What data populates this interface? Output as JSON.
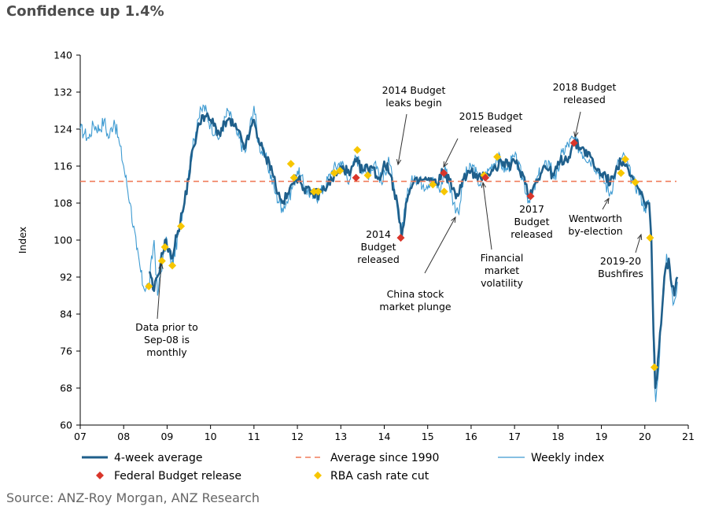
{
  "title": "Confidence up 1.4%",
  "source": "Source: ANZ-Roy Morgan, ANZ Research",
  "colors": {
    "avg4w": "#1f5f8b",
    "weekly": "#3d9ad1",
    "average": "#f07d5c",
    "budget": "#d9352a",
    "rba": "#f7c600"
  },
  "chart_data": {
    "type": "line",
    "title": "Confidence up 1.4%",
    "xlabel": "",
    "ylabel": "Index",
    "xlim": [
      2007,
      2021
    ],
    "ylim": [
      60,
      140
    ],
    "x_ticks": [
      "07",
      "08",
      "09",
      "10",
      "11",
      "12",
      "13",
      "14",
      "15",
      "16",
      "17",
      "18",
      "19",
      "20",
      "21"
    ],
    "y_ticks": [
      60,
      68,
      76,
      84,
      92,
      100,
      108,
      116,
      124,
      132,
      140
    ],
    "average_since_1990": 112.7,
    "legend": [
      "4-week average",
      "Average since 1990",
      "Weekly index",
      "Federal Budget release",
      "RBA cash rate cut"
    ],
    "series_4week_anchors": [
      [
        2008.58,
        93
      ],
      [
        2008.7,
        89
      ],
      [
        2008.85,
        95
      ],
      [
        2008.95,
        100
      ],
      [
        2009.1,
        96
      ],
      [
        2009.25,
        102
      ],
      [
        2009.4,
        108
      ],
      [
        2009.6,
        120
      ],
      [
        2009.8,
        127
      ],
      [
        2010.0,
        126
      ],
      [
        2010.2,
        123
      ],
      [
        2010.4,
        126
      ],
      [
        2010.6,
        124
      ],
      [
        2010.8,
        120
      ],
      [
        2011.0,
        126
      ],
      [
        2011.1,
        122
      ],
      [
        2011.25,
        118
      ],
      [
        2011.4,
        116
      ],
      [
        2011.55,
        110
      ],
      [
        2011.65,
        108
      ],
      [
        2011.8,
        110
      ],
      [
        2011.95,
        114
      ],
      [
        2012.1,
        112
      ],
      [
        2012.3,
        110
      ],
      [
        2012.5,
        110
      ],
      [
        2012.7,
        112
      ],
      [
        2012.9,
        114
      ],
      [
        2013.05,
        116
      ],
      [
        2013.2,
        114
      ],
      [
        2013.35,
        117
      ],
      [
        2013.5,
        115
      ],
      [
        2013.7,
        116
      ],
      [
        2013.9,
        113
      ],
      [
        2014.0,
        117
      ],
      [
        2014.15,
        114
      ],
      [
        2014.3,
        108
      ],
      [
        2014.4,
        100.5
      ],
      [
        2014.5,
        108
      ],
      [
        2014.65,
        112
      ],
      [
        2014.85,
        113
      ],
      [
        2015.0,
        113
      ],
      [
        2015.2,
        112
      ],
      [
        2015.35,
        115
      ],
      [
        2015.5,
        113
      ],
      [
        2015.65,
        109
      ],
      [
        2015.8,
        113
      ],
      [
        2016.0,
        115
      ],
      [
        2016.15,
        113
      ],
      [
        2016.3,
        114
      ],
      [
        2016.5,
        115
      ],
      [
        2016.7,
        117
      ],
      [
        2016.85,
        116
      ],
      [
        2017.0,
        117
      ],
      [
        2017.2,
        114
      ],
      [
        2017.35,
        109.5
      ],
      [
        2017.5,
        113
      ],
      [
        2017.7,
        116
      ],
      [
        2017.9,
        114
      ],
      [
        2018.05,
        117
      ],
      [
        2018.25,
        118
      ],
      [
        2018.35,
        121
      ],
      [
        2018.55,
        120
      ],
      [
        2018.75,
        118
      ],
      [
        2018.9,
        115
      ],
      [
        2019.1,
        114
      ],
      [
        2019.2,
        112
      ],
      [
        2019.35,
        116
      ],
      [
        2019.5,
        117
      ],
      [
        2019.65,
        114
      ],
      [
        2019.8,
        112
      ],
      [
        2019.9,
        110
      ],
      [
        2020.0,
        108
      ],
      [
        2020.1,
        108
      ],
      [
        2020.15,
        100
      ],
      [
        2020.2,
        80
      ],
      [
        2020.24,
        68
      ],
      [
        2020.28,
        70
      ],
      [
        2020.35,
        80
      ],
      [
        2020.45,
        92
      ],
      [
        2020.55,
        96
      ],
      [
        2020.62,
        90
      ],
      [
        2020.68,
        88
      ],
      [
        2020.75,
        92
      ]
    ],
    "series_weekly_anchors": [
      [
        2007.0,
        124
      ],
      [
        2007.1,
        123
      ],
      [
        2007.2,
        122
      ],
      [
        2007.3,
        125
      ],
      [
        2007.45,
        124
      ],
      [
        2007.55,
        126
      ],
      [
        2007.65,
        122
      ],
      [
        2007.78,
        126
      ],
      [
        2007.9,
        121
      ],
      [
        2008.0,
        116
      ],
      [
        2008.15,
        108
      ],
      [
        2008.3,
        98
      ],
      [
        2008.45,
        90
      ],
      [
        2008.58,
        90
      ],
      [
        2008.7,
        100
      ],
      [
        2008.78,
        88
      ],
      [
        2008.9,
        96
      ],
      [
        2009.0,
        100
      ],
      [
        2009.1,
        94
      ],
      [
        2009.3,
        103
      ],
      [
        2009.5,
        115
      ],
      [
        2009.7,
        126
      ],
      [
        2009.85,
        129
      ],
      [
        2010.0,
        125
      ],
      [
        2010.2,
        122
      ],
      [
        2010.4,
        128
      ],
      [
        2010.6,
        123
      ],
      [
        2010.8,
        119
      ],
      [
        2011.0,
        129
      ],
      [
        2011.1,
        121
      ],
      [
        2011.3,
        117
      ],
      [
        2011.5,
        110
      ],
      [
        2011.65,
        107
      ],
      [
        2011.8,
        109
      ],
      [
        2012.0,
        115
      ],
      [
        2012.2,
        111
      ],
      [
        2012.4,
        109
      ],
      [
        2012.6,
        111
      ],
      [
        2012.8,
        115
      ],
      [
        2013.0,
        117
      ],
      [
        2013.2,
        113
      ],
      [
        2013.35,
        118
      ],
      [
        2013.6,
        114
      ],
      [
        2013.8,
        117
      ],
      [
        2013.95,
        112
      ],
      [
        2014.1,
        118
      ],
      [
        2014.25,
        109
      ],
      [
        2014.38,
        101
      ],
      [
        2014.5,
        109
      ],
      [
        2014.7,
        114
      ],
      [
        2014.9,
        112
      ],
      [
        2015.1,
        113
      ],
      [
        2015.3,
        111
      ],
      [
        2015.4,
        116
      ],
      [
        2015.6,
        108
      ],
      [
        2015.7,
        106
      ],
      [
        2015.85,
        114
      ],
      [
        2016.05,
        116
      ],
      [
        2016.2,
        112
      ],
      [
        2016.4,
        115
      ],
      [
        2016.6,
        118
      ],
      [
        2016.8,
        115
      ],
      [
        2017.0,
        118
      ],
      [
        2017.2,
        113
      ],
      [
        2017.35,
        108
      ],
      [
        2017.55,
        114
      ],
      [
        2017.8,
        117
      ],
      [
        2017.95,
        113
      ],
      [
        2018.1,
        119
      ],
      [
        2018.35,
        122
      ],
      [
        2018.55,
        119
      ],
      [
        2018.8,
        117
      ],
      [
        2019.0,
        114
      ],
      [
        2019.2,
        110
      ],
      [
        2019.4,
        117
      ],
      [
        2019.55,
        118
      ],
      [
        2019.7,
        113
      ],
      [
        2019.85,
        111
      ],
      [
        2020.0,
        107
      ],
      [
        2020.1,
        108
      ],
      [
        2020.15,
        99
      ],
      [
        2020.2,
        76
      ],
      [
        2020.25,
        65
      ],
      [
        2020.3,
        70
      ],
      [
        2020.4,
        86
      ],
      [
        2020.5,
        97
      ],
      [
        2020.58,
        93
      ],
      [
        2020.65,
        86
      ],
      [
        2020.75,
        91
      ]
    ],
    "budget_points": [
      [
        2013.35,
        113.5
      ],
      [
        2014.38,
        100.5
      ],
      [
        2015.37,
        114.5
      ],
      [
        2016.33,
        113.5
      ],
      [
        2017.37,
        109.5
      ],
      [
        2018.37,
        121
      ]
    ],
    "rba_points": [
      [
        2008.58,
        90
      ],
      [
        2008.88,
        95.5
      ],
      [
        2008.95,
        98.5
      ],
      [
        2009.12,
        94.5
      ],
      [
        2009.32,
        103
      ],
      [
        2011.85,
        116.5
      ],
      [
        2011.92,
        113.5
      ],
      [
        2012.38,
        110.5
      ],
      [
        2012.48,
        110.5
      ],
      [
        2012.85,
        114.5
      ],
      [
        2012.98,
        115
      ],
      [
        2013.38,
        119.5
      ],
      [
        2013.62,
        114
      ],
      [
        2015.12,
        112
      ],
      [
        2015.38,
        110.5
      ],
      [
        2016.3,
        114
      ],
      [
        2016.6,
        118
      ],
      [
        2019.45,
        114.5
      ],
      [
        2019.55,
        117.5
      ],
      [
        2019.78,
        112.5
      ],
      [
        2020.12,
        100.5
      ],
      [
        2020.22,
        72.5
      ]
    ],
    "annotations": [
      {
        "lines": [
          "Data prior to",
          "Sep-08 is",
          "monthly"
        ]
      },
      {
        "lines": [
          "2014 Budget",
          "leaks begin"
        ]
      },
      {
        "lines": [
          "2014",
          "Budget",
          "released"
        ]
      },
      {
        "lines": [
          "2015 Budget",
          "released"
        ]
      },
      {
        "lines": [
          "China stock",
          "market plunge"
        ]
      },
      {
        "lines": [
          "Financial",
          "market",
          "volatility"
        ]
      },
      {
        "lines": [
          "2017",
          "Budget",
          "released"
        ]
      },
      {
        "lines": [
          "2018 Budget",
          "released"
        ]
      },
      {
        "lines": [
          "Wentworth",
          "by-election"
        ]
      },
      {
        "lines": [
          "2019-20",
          "Bushfires"
        ]
      }
    ]
  }
}
